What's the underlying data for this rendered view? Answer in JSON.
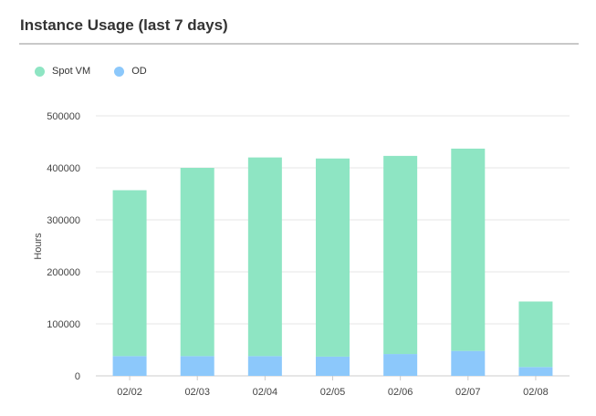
{
  "panel": {
    "title": "Instance Usage (last 7 days)"
  },
  "colors": {
    "spot": "#8ee5c3",
    "od": "#8cc8fb",
    "grid": "#e6e6e6",
    "axis": "#cccccc",
    "text": "#444444"
  },
  "chart_data": {
    "type": "bar",
    "stacked": true,
    "categories": [
      "02/02",
      "02/03",
      "02/04",
      "02/05",
      "02/06",
      "02/07",
      "02/08"
    ],
    "series": [
      {
        "name": "Spot VM",
        "values": [
          319000,
          362000,
          382000,
          381000,
          381000,
          389000,
          126000
        ]
      },
      {
        "name": "OD",
        "values": [
          38000,
          38000,
          38000,
          37000,
          42000,
          48000,
          17000
        ]
      }
    ],
    "ylabel": "Hours",
    "ylim": [
      0,
      500000
    ],
    "yticks": [
      "0",
      "100000",
      "200000",
      "300000",
      "400000",
      "500000"
    ],
    "grid": true,
    "legend_position": "top-left"
  }
}
